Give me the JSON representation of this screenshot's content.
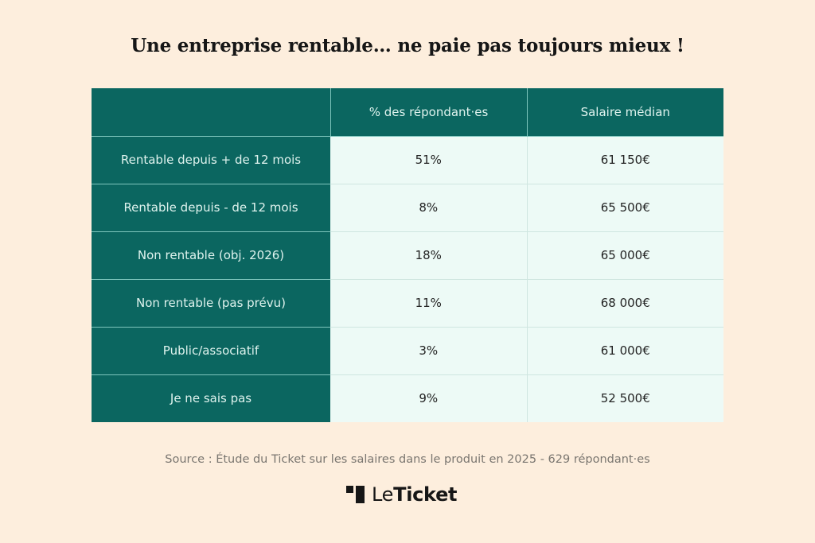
{
  "title": "Une entreprise rentable… ne paie pas toujours mieux !",
  "table": {
    "headers": [
      "",
      "% des répondant·es",
      "Salaire médian"
    ],
    "rows": [
      {
        "label": "Rentable depuis + de 12 mois",
        "percent": "51%",
        "salary": "61 150€"
      },
      {
        "label": "Rentable depuis - de 12 mois",
        "percent": "8%",
        "salary": "65 500€"
      },
      {
        "label": "Non rentable (obj. 2026)",
        "percent": "18%",
        "salary": "65 000€"
      },
      {
        "label": "Non rentable (pas prévu)",
        "percent": "11%",
        "salary": "68 000€"
      },
      {
        "label": "Public/associatif",
        "percent": "3%",
        "salary": "61 000€"
      },
      {
        "label": "Je ne sais pas",
        "percent": "9%",
        "salary": "52 500€"
      }
    ]
  },
  "source": "Source : Étude du Ticket sur les salaires dans le produit en 2025 - 629 répondant·es",
  "logo": {
    "prefix": "Le",
    "name": "Ticket"
  },
  "colors": {
    "background": "#fdeedd",
    "header_teal": "#0b6660",
    "cell_mint": "#edfaf6",
    "source_gray": "#7a7670"
  }
}
